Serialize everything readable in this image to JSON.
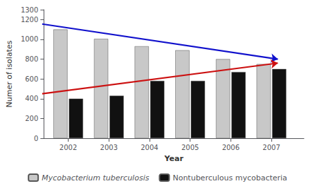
{
  "chart_data": {
    "type": "bar",
    "x": [
      2002,
      2003,
      2004,
      2005,
      2006,
      2007
    ],
    "series": [
      {
        "name": "Mycobacterium tuberculosis",
        "color": "#c8c8c8",
        "values": [
          1100,
          1005,
          930,
          890,
          800,
          750
        ]
      },
      {
        "name": "Nontuberculous mycobacteria",
        "color": "#111111",
        "values": [
          400,
          430,
          580,
          580,
          670,
          700
        ]
      }
    ],
    "annotations": [
      {
        "type": "arrow",
        "start": [
          2001.55,
          1155
        ],
        "end": [
          2007.35,
          800
        ],
        "color": "#1111cc"
      },
      {
        "type": "arrow",
        "start": [
          2001.55,
          450
        ],
        "end": [
          2007.35,
          760
        ],
        "color": "#cc1111"
      }
    ],
    "xlabel": "Year",
    "ylabel": "Numer of isolates",
    "xlim": [
      2001.4,
      2007.8
    ],
    "xticks": [
      2002,
      2003,
      2004,
      2005,
      2006,
      2007
    ],
    "ylim": [
      0,
      1300
    ],
    "yticks": [
      0,
      200,
      400,
      600,
      800,
      1000,
      1200
    ],
    "grid": false,
    "legend": "bottom"
  }
}
